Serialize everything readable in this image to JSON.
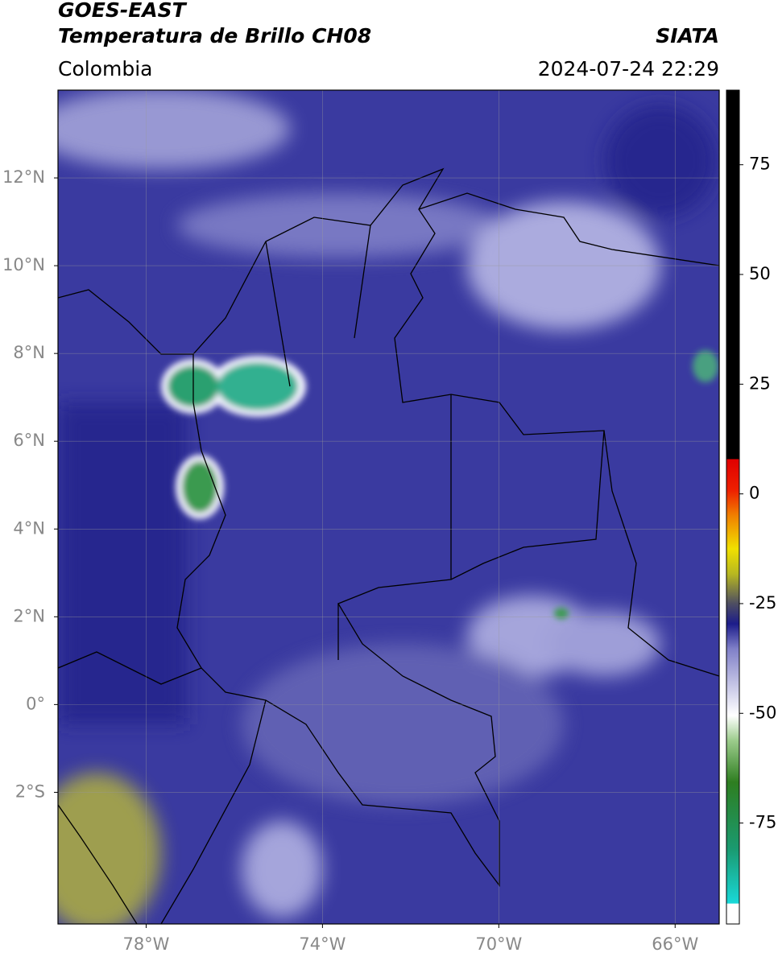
{
  "header": {
    "satellite": "GOES-EAST",
    "product": "Temperatura de Brillo CH08",
    "source": "SIATA",
    "region": "Colombia",
    "datetime": "2024-07-24 22:29"
  },
  "map": {
    "xlim": [
      -80,
      -65
    ],
    "ylim": [
      -5,
      14
    ],
    "xticks": [
      {
        "value": -78,
        "label": "78°W"
      },
      {
        "value": -74,
        "label": "74°W"
      },
      {
        "value": -70,
        "label": "70°W"
      },
      {
        "value": -66,
        "label": "66°W"
      }
    ],
    "yticks": [
      {
        "value": -2,
        "label": "2°S"
      },
      {
        "value": 0,
        "label": "0°"
      },
      {
        "value": 2,
        "label": "2°N"
      },
      {
        "value": 4,
        "label": "4°N"
      },
      {
        "value": 6,
        "label": "6°N"
      },
      {
        "value": 8,
        "label": "8°N"
      },
      {
        "value": 10,
        "label": "10°N"
      },
      {
        "value": 12,
        "label": "12°N"
      }
    ],
    "grid": true
  },
  "colorbar": {
    "lim": [
      -98,
      92
    ],
    "ticks": [
      75,
      50,
      25,
      0,
      -25,
      -50,
      -75
    ]
  }
}
